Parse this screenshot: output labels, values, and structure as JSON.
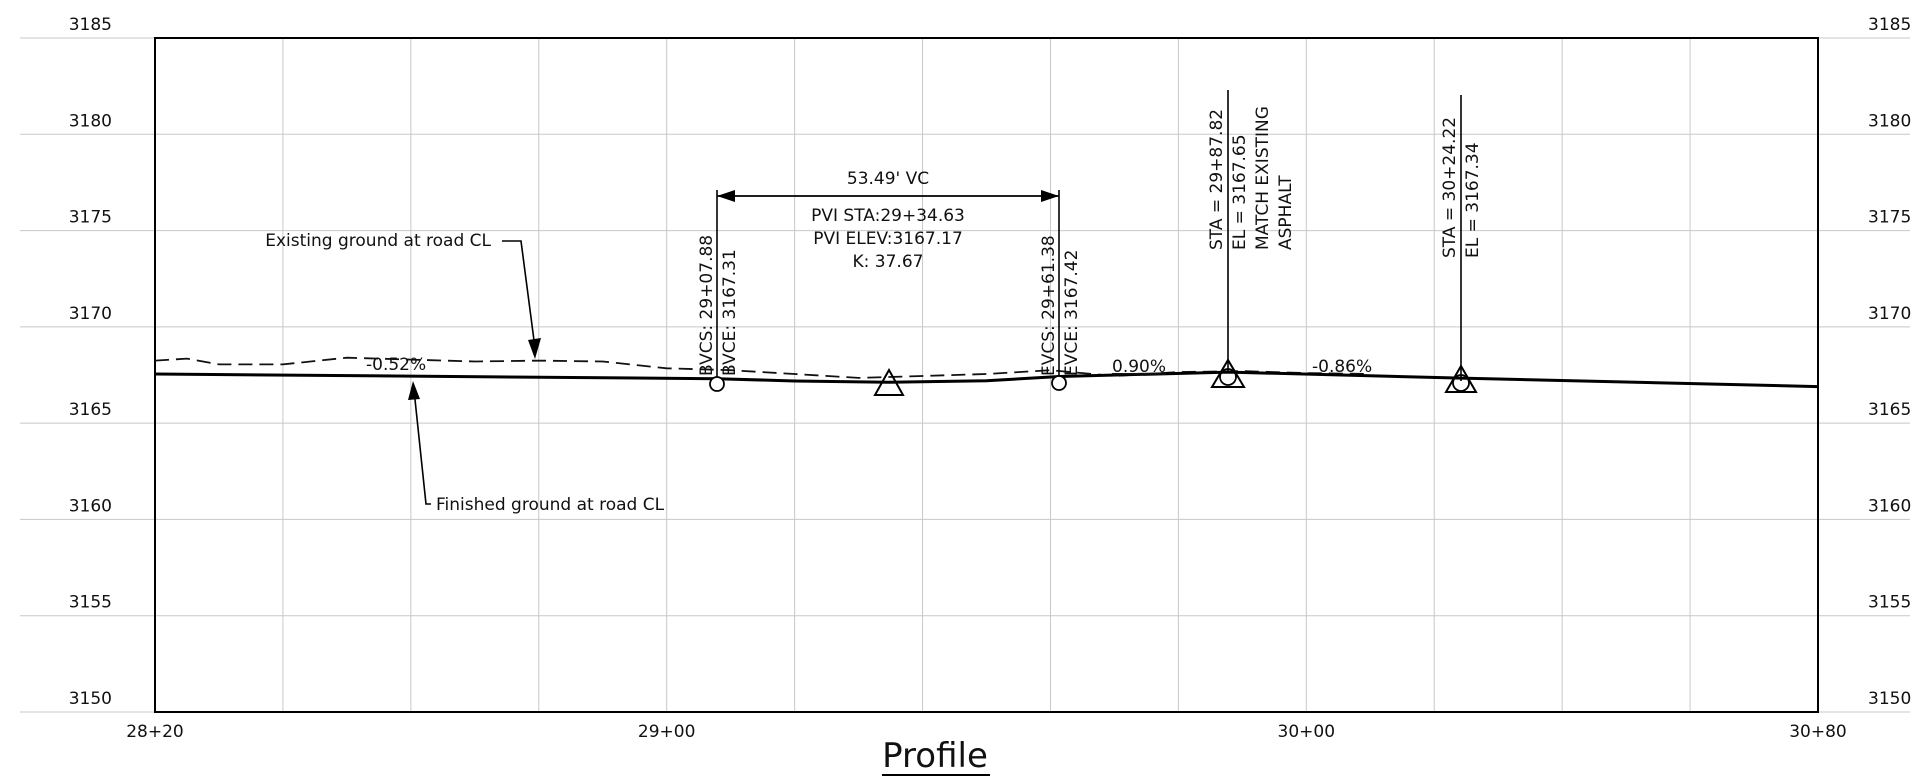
{
  "title": "Profile",
  "axes": {
    "elevations": [
      {
        "value": 3185,
        "label": "3185"
      },
      {
        "value": 3180,
        "label": "3180"
      },
      {
        "value": 3175,
        "label": "3175"
      },
      {
        "value": 3170,
        "label": "3170"
      },
      {
        "value": 3165,
        "label": "3165"
      },
      {
        "value": 3160,
        "label": "3160"
      },
      {
        "value": 3155,
        "label": "3155"
      },
      {
        "value": 3150,
        "label": "3150"
      }
    ],
    "stations": [
      {
        "value": 2820,
        "label": "28+20"
      },
      {
        "value": 2900,
        "label": "29+00"
      },
      {
        "value": 3000,
        "label": "30+00"
      },
      {
        "value": 3080,
        "label": "30+80"
      }
    ],
    "grid_station_interval": 20,
    "station_range": [
      2820,
      3080
    ],
    "elevation_range": [
      3150,
      3185
    ]
  },
  "annotations": {
    "existing_label": "Existing ground at road CL",
    "finished_label": "Finished ground at road CL",
    "grade_1": "-0.52%",
    "grade_2": "0.90%",
    "grade_3": "-0.86%",
    "vc_length": "53.49' VC",
    "pvi_sta": "PVI STA:29+34.63",
    "pvi_elev": "PVI ELEV:3167.17",
    "k_value": "K: 37.67",
    "bvcs": "BVCS: 29+07.88",
    "bvce": "BVCE: 3167.31",
    "evcs": "EVCS: 29+61.38",
    "evce": "EVCE: 3167.42",
    "pt1_sta": "STA = 29+87.82",
    "pt1_el": "EL = 3167.65",
    "pt1_note1": "MATCH EXISTING",
    "pt1_note2": "ASPHALT",
    "pt2_sta": "STA = 30+24.22",
    "pt2_el": "EL = 3167.34"
  },
  "chart_data": {
    "type": "line",
    "title": "Profile",
    "xlabel": "",
    "ylabel": "",
    "xlim": [
      2820,
      3080
    ],
    "ylim": [
      3150,
      3185
    ],
    "series": [
      {
        "name": "Finished ground at road CL",
        "style": "solid",
        "x": [
          2820,
          2907.88,
          2920,
          2934.63,
          2950,
          2961.38,
          2987.82,
          3024.22,
          3080
        ],
        "y": [
          3167.55,
          3167.31,
          3167.19,
          3167.12,
          3167.2,
          3167.42,
          3167.65,
          3167.34,
          3166.9
        ]
      },
      {
        "name": "Existing ground at road CL",
        "style": "dashed",
        "x": [
          2820,
          2825,
          2830,
          2840,
          2850,
          2860,
          2870,
          2880,
          2890,
          2900,
          2910,
          2920,
          2930,
          2940,
          2950,
          2960,
          2970,
          2980,
          2990,
          3000,
          3010
        ],
        "y": [
          3168.25,
          3168.35,
          3168.05,
          3168.05,
          3168.4,
          3168.3,
          3168.2,
          3168.25,
          3168.2,
          3167.85,
          3167.75,
          3167.55,
          3167.35,
          3167.45,
          3167.55,
          3167.75,
          3167.45,
          3167.65,
          3167.7,
          3167.6,
          3167.55
        ]
      }
    ],
    "points": [
      {
        "label": "BVCS",
        "x": 2907.88,
        "y": 3167.31
      },
      {
        "label": "PVI",
        "x": 2934.63,
        "y": 3167.17
      },
      {
        "label": "EVCS",
        "x": 2961.38,
        "y": 3167.42
      },
      {
        "label": "STA 29+87.82",
        "x": 2987.82,
        "y": 3167.65
      },
      {
        "label": "STA 30+24.22",
        "x": 3024.22,
        "y": 3167.34
      }
    ],
    "grid": true
  }
}
